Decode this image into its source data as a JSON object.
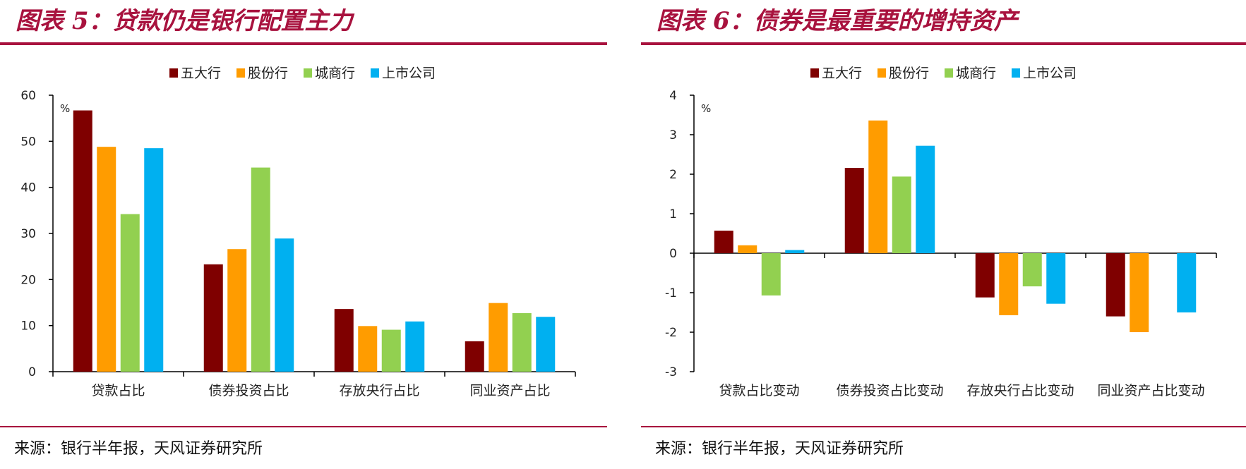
{
  "left": {
    "title": "图表 5：贷款仍是银行配置主力",
    "source": "来源：银行半年报，天风证券研究所"
  },
  "right": {
    "title": "图表 6：债券是最重要的增持资产",
    "source": "来源：银行半年报，天风证券研究所"
  },
  "chart_data": [
    {
      "type": "bar",
      "title": "贷款仍是银行配置主力",
      "ylabel": "%",
      "ylim": [
        0,
        60
      ],
      "yticks": [
        0,
        10,
        20,
        30,
        40,
        50,
        60
      ],
      "grid": false,
      "legend_position": "top",
      "categories": [
        "贷款占比",
        "债券投资占比",
        "存放央行占比",
        "同业资产占比"
      ],
      "series": [
        {
          "name": "五大行",
          "color": "#7f0000",
          "values": [
            56.7,
            23.3,
            13.6,
            6.6
          ]
        },
        {
          "name": "股份行",
          "color": "#ff9c00",
          "values": [
            48.8,
            26.6,
            9.9,
            14.9
          ]
        },
        {
          "name": "城商行",
          "color": "#92d050",
          "values": [
            34.2,
            44.3,
            9.1,
            12.7
          ]
        },
        {
          "name": "上市公司",
          "color": "#00b0f0",
          "values": [
            48.5,
            28.9,
            10.9,
            11.9
          ]
        }
      ]
    },
    {
      "type": "bar",
      "title": "债券是最重要的增持资产",
      "ylabel": "%",
      "ylim": [
        -3,
        4
      ],
      "yticks": [
        -3,
        -2,
        -1,
        0,
        1,
        2,
        3,
        4
      ],
      "grid": false,
      "legend_position": "top",
      "categories": [
        "贷款占比变动",
        "债券投资占比变动",
        "存放央行占比变动",
        "同业资产占比变动"
      ],
      "series": [
        {
          "name": "五大行",
          "color": "#7f0000",
          "values": [
            0.57,
            2.16,
            -1.12,
            -1.6
          ]
        },
        {
          "name": "股份行",
          "color": "#ff9c00",
          "values": [
            0.2,
            3.36,
            -1.57,
            -2.0
          ]
        },
        {
          "name": "城商行",
          "color": "#92d050",
          "values": [
            -1.07,
            1.94,
            -0.84,
            0
          ]
        },
        {
          "name": "上市公司",
          "color": "#00b0f0",
          "values": [
            0.08,
            2.72,
            -1.28,
            -1.5
          ]
        }
      ]
    }
  ]
}
